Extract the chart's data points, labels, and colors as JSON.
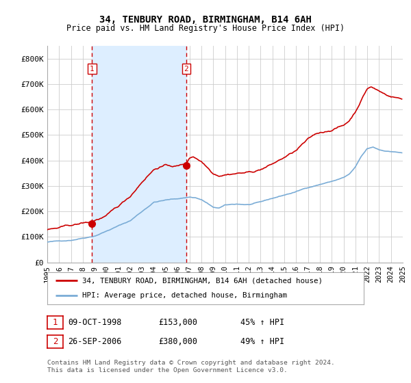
{
  "title": "34, TENBURY ROAD, BIRMINGHAM, B14 6AH",
  "subtitle": "Price paid vs. HM Land Registry's House Price Index (HPI)",
  "legend_line1": "34, TENBURY ROAD, BIRMINGHAM, B14 6AH (detached house)",
  "legend_line2": "HPI: Average price, detached house, Birmingham",
  "sale1_date_str": "09-OCT-1998",
  "sale1_price_str": "£153,000",
  "sale1_hpi_str": "45% ↑ HPI",
  "sale2_date_str": "26-SEP-2006",
  "sale2_price_str": "£380,000",
  "sale2_hpi_str": "49% ↑ HPI",
  "footnote": "Contains HM Land Registry data © Crown copyright and database right 2024.\nThis data is licensed under the Open Government Licence v3.0.",
  "red_color": "#cc0000",
  "blue_color": "#7aacd6",
  "shade_color": "#ddeeff",
  "vline_color": "#cc0000",
  "ylim_low": 0,
  "ylim_high": 850000,
  "yticks": [
    0,
    100000,
    200000,
    300000,
    400000,
    500000,
    600000,
    700000,
    800000
  ],
  "ytick_labels": [
    "£0",
    "£100K",
    "£200K",
    "£300K",
    "£400K",
    "£500K",
    "£600K",
    "£700K",
    "£800K"
  ],
  "sale1_x": 1998.78,
  "sale2_x": 2006.73,
  "sale1_y": 153000,
  "sale2_y": 380000,
  "xlim_low": 1995,
  "xlim_high": 2025,
  "background_color": "#ffffff",
  "grid_color": "#cccccc"
}
